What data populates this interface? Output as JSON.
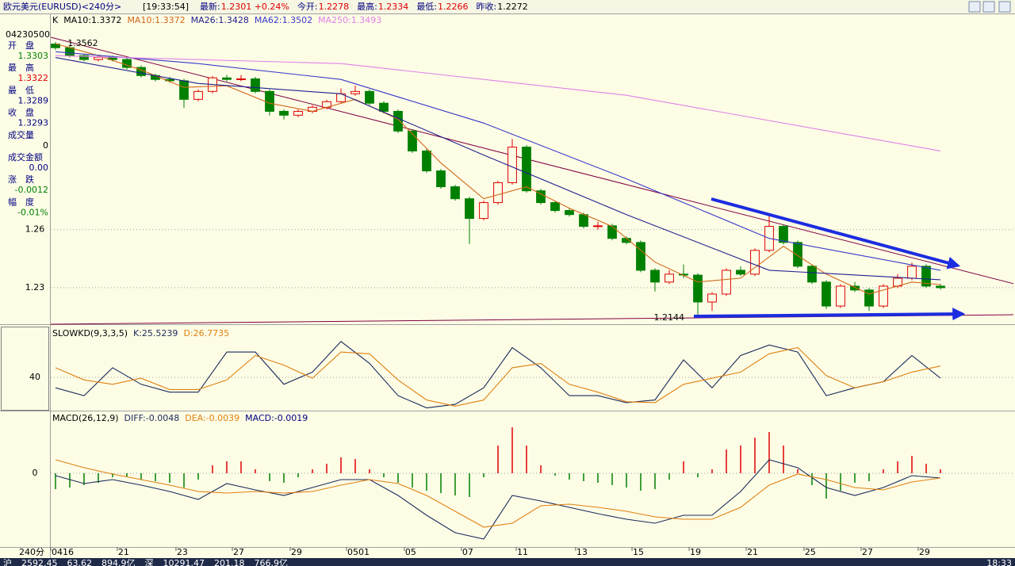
{
  "header": {
    "title": "欧元美元(EURUSD)<240分>",
    "clock": "[19:33:54]",
    "quote": [
      {
        "label": "最新:",
        "value": "1.2301 +0.24%",
        "color": "#e00000"
      },
      {
        "label": "今开:",
        "value": "1.2278",
        "color": "#e00000"
      },
      {
        "label": "最高:",
        "value": "1.2334",
        "color": "#e00000"
      },
      {
        "label": "最低:",
        "value": "1.2266",
        "color": "#e00000"
      },
      {
        "label": "昨收:",
        "value": "1.2272",
        "color": "#000000"
      }
    ]
  },
  "info": {
    "stamp": "04230500",
    "rows": [
      {
        "label": "开　盘",
        "value": "1.3303",
        "color": "#008000"
      },
      {
        "label": "最　高",
        "value": "1.3322",
        "color": "#e00000"
      },
      {
        "label": "最　低",
        "value": "1.3289",
        "color": "#000080"
      },
      {
        "label": "收　盘",
        "value": "1.3293",
        "color": "#000080"
      },
      {
        "label": "成交量",
        "value": "0",
        "color": "#000000"
      },
      {
        "label": "成交金额",
        "value": "0.00",
        "color": "#000080"
      },
      {
        "label": "涨　跌",
        "value": "-0.0012",
        "color": "#008000"
      },
      {
        "label": "幅　度",
        "value": "-0.01%",
        "color": "#008000"
      }
    ]
  },
  "period_label": "240分",
  "status": {
    "items": [
      "沪",
      "2592.45",
      "63.62",
      "894.9亿",
      "深",
      "10291.47",
      "201.18",
      "766.9亿"
    ],
    "time": "18:33"
  },
  "chart_data": [
    {
      "type": "candlestick",
      "label": "K",
      "sublabel": "MA10:1.3372",
      "up_color": "#e00000",
      "down_color": "#008000",
      "open": [
        1.356,
        1.3541,
        1.35,
        1.348,
        1.3492,
        1.348,
        1.3439,
        1.3397,
        1.3377,
        1.337,
        1.3274,
        1.3315,
        1.3385,
        1.3377,
        1.338,
        1.3315,
        1.3212,
        1.3192,
        1.3212,
        1.3233,
        1.3262,
        1.3303,
        1.3315,
        1.3254,
        1.3212,
        1.311,
        1.3007,
        1.2904,
        1.2822,
        1.276,
        1.2658,
        1.274,
        1.2843,
        1.3027,
        1.2801,
        1.274,
        1.2699,
        1.2678,
        1.2617,
        1.262,
        1.2555,
        1.2534,
        1.239,
        1.2329,
        1.237,
        1.2365,
        1.2226,
        1.2267,
        1.239,
        1.237,
        1.2493,
        1.2617,
        1.2534,
        1.2411,
        1.2329,
        1.2205,
        1.2308,
        1.2288,
        1.2205,
        1.2308,
        1.2349,
        1.2411,
        1.2308
      ],
      "high": [
        1.357,
        1.355,
        1.351,
        1.3502,
        1.35,
        1.349,
        1.3449,
        1.3407,
        1.339,
        1.338,
        1.3325,
        1.3395,
        1.34,
        1.34,
        1.339,
        1.3325,
        1.3222,
        1.3222,
        1.3243,
        1.3272,
        1.333,
        1.3345,
        1.3325,
        1.3264,
        1.3222,
        1.312,
        1.3017,
        1.2914,
        1.2832,
        1.277,
        1.275,
        1.2853,
        1.3069,
        1.3037,
        1.2811,
        1.275,
        1.2709,
        1.2688,
        1.264,
        1.263,
        1.2565,
        1.2544,
        1.24,
        1.239,
        1.242,
        1.2375,
        1.2277,
        1.24,
        1.241,
        1.2503,
        1.2678,
        1.2627,
        1.2544,
        1.2421,
        1.2339,
        1.2318,
        1.233,
        1.2298,
        1.2318,
        1.237,
        1.243,
        1.2421,
        1.232
      ],
      "low": [
        1.353,
        1.349,
        1.347,
        1.347,
        1.347,
        1.3429,
        1.3387,
        1.3367,
        1.336,
        1.323,
        1.3264,
        1.3305,
        1.3367,
        1.3367,
        1.3305,
        1.319,
        1.317,
        1.3182,
        1.3202,
        1.3223,
        1.3252,
        1.3293,
        1.3244,
        1.3202,
        1.31,
        1.2997,
        1.2894,
        1.2812,
        1.275,
        1.2526,
        1.2648,
        1.273,
        1.2833,
        1.2791,
        1.273,
        1.2689,
        1.2668,
        1.2607,
        1.26,
        1.2545,
        1.2524,
        1.238,
        1.228,
        1.2319,
        1.235,
        1.2144,
        1.218,
        1.2257,
        1.236,
        1.236,
        1.2483,
        1.2524,
        1.2401,
        1.2319,
        1.219,
        1.2195,
        1.2278,
        1.218,
        1.2195,
        1.2298,
        1.2339,
        1.2298,
        1.229
      ],
      "close": [
        1.3541,
        1.35,
        1.348,
        1.3492,
        1.348,
        1.3439,
        1.3397,
        1.3377,
        1.337,
        1.3274,
        1.3315,
        1.3385,
        1.3377,
        1.338,
        1.3315,
        1.3212,
        1.3192,
        1.3212,
        1.3233,
        1.3262,
        1.3303,
        1.3315,
        1.3254,
        1.3212,
        1.311,
        1.3007,
        1.2904,
        1.2822,
        1.276,
        1.2658,
        1.274,
        1.2843,
        1.3027,
        1.2801,
        1.274,
        1.2699,
        1.2678,
        1.2617,
        1.262,
        1.2555,
        1.2534,
        1.239,
        1.2329,
        1.237,
        1.2365,
        1.2226,
        1.2267,
        1.239,
        1.237,
        1.2493,
        1.2617,
        1.2534,
        1.2411,
        1.2329,
        1.2205,
        1.2308,
        1.2288,
        1.2205,
        1.2308,
        1.2349,
        1.2411,
        1.2308,
        1.23
      ],
      "series": [
        {
          "name": "MA10:1.3372",
          "color": "#d06818",
          "x": [
            0,
            3,
            6,
            9,
            12,
            15,
            18,
            21,
            24,
            27,
            30,
            33,
            36,
            39,
            42,
            45,
            48,
            51,
            54,
            57,
            60,
            62
          ],
          "values": [
            1.3562,
            1.35,
            1.3426,
            1.3336,
            1.3344,
            1.3254,
            1.3212,
            1.3274,
            1.3171,
            1.2945,
            1.276,
            1.2822,
            1.2711,
            1.2617,
            1.2432,
            1.2329,
            1.2349,
            1.2514,
            1.237,
            1.2267,
            1.2329,
            1.2316
          ]
        },
        {
          "name": "MA26:1.3428",
          "color": "#202090",
          "x": [
            0,
            10,
            20,
            30,
            40,
            50,
            62
          ],
          "values": [
            1.349,
            1.3356,
            1.3303,
            1.2986,
            1.2678,
            1.239,
            1.2341
          ]
        },
        {
          "name": "MA62:1.3502",
          "color": "#3838c8",
          "x": [
            0,
            10,
            20,
            30,
            40,
            50,
            62
          ],
          "values": [
            1.352,
            1.3459,
            1.3377,
            1.3151,
            1.2863,
            1.2555,
            1.239
          ]
        },
        {
          "name": "MA250:1.3493",
          "color": "#e080e8",
          "x": [
            0,
            20,
            40,
            62
          ],
          "values": [
            1.35,
            1.3459,
            1.3295,
            1.3007
          ]
        }
      ],
      "trendlines": [
        {
          "color": "#800040",
          "x": [
            -0.333,
            67.111
          ],
          "values": [
            1.3595,
            1.2321
          ]
        },
        {
          "color": "#800040",
          "x": [
            -0.333,
            67.111
          ],
          "values": [
            1.2111,
            1.216
          ]
        }
      ],
      "price_labels": [
        {
          "x": 0.4,
          "value": 1.3562
        },
        {
          "x": 44.5,
          "value": 1.2144
        }
      ],
      "xlim": [
        -0.333,
        67.111
      ],
      "ylim": [
        1.2111,
        1.3714
      ],
      "yticks": [
        1.26,
        1.23
      ],
      "grid": true,
      "xticks": [
        {
          "value": -0.333,
          "label": "0416"
        },
        {
          "value": 4.33,
          "label": "21"
        },
        {
          "value": 8.44,
          "label": "23"
        },
        {
          "value": 12.39,
          "label": "27"
        },
        {
          "value": 16.44,
          "label": "29"
        },
        {
          "value": 20.39,
          "label": "0501"
        },
        {
          "value": 24.44,
          "label": "05"
        },
        {
          "value": 28.44,
          "label": "07"
        },
        {
          "value": 32.28,
          "label": "11"
        },
        {
          "value": 36.44,
          "label": "13"
        },
        {
          "value": 40.39,
          "label": "15"
        },
        {
          "value": 44.39,
          "label": "19"
        },
        {
          "value": 48.39,
          "label": "21"
        },
        {
          "value": 52.44,
          "label": "25"
        },
        {
          "value": 56.44,
          "label": "27"
        },
        {
          "value": 60.44,
          "label": "29"
        }
      ]
    },
    {
      "type": "line",
      "label": "SLOWKD(9,3,3,5)",
      "xlim": [
        -0.333,
        67.111
      ],
      "ylim": [
        1.85,
        97.2
      ],
      "yticks": [
        40
      ],
      "grid": true,
      "series": [
        {
          "name": "K:25.5239",
          "color": "#1a2a5a",
          "x": [
            0,
            2,
            4,
            6,
            8,
            10,
            12,
            14,
            16,
            18,
            20,
            22,
            24,
            26,
            28,
            30,
            32,
            34,
            36,
            38,
            40,
            42,
            44,
            46,
            48,
            50,
            52,
            54,
            56,
            58,
            60,
            62
          ],
          "values": [
            28,
            19,
            51,
            32,
            23,
            23,
            69,
            69,
            32,
            46,
            81,
            56,
            19,
            5,
            9,
            28,
            74,
            51,
            19,
            19,
            11,
            14,
            60,
            28,
            65,
            77,
            69,
            19,
            28,
            35,
            65,
            39
          ]
        },
        {
          "name": "D:26.7735",
          "color": "#e08010",
          "x": [
            0,
            2,
            4,
            6,
            8,
            10,
            12,
            14,
            16,
            18,
            20,
            22,
            24,
            26,
            28,
            30,
            32,
            34,
            36,
            38,
            40,
            42,
            44,
            46,
            48,
            50,
            52,
            54,
            56,
            58,
            60,
            62
          ],
          "values": [
            51,
            37,
            32,
            39,
            26,
            26,
            37,
            65,
            54,
            39,
            69,
            67,
            37,
            14,
            7,
            14,
            51,
            56,
            32,
            23,
            12,
            11,
            32,
            39,
            46,
            67,
            74,
            42,
            28,
            35,
            46,
            53
          ]
        }
      ]
    },
    {
      "type": "macd",
      "label": "MACD(26,12,9)",
      "bar_name": "MACD:-0.0019",
      "up_color": "#e00000",
      "down_color": "#008000",
      "xlim": [
        -0.333,
        67.111
      ],
      "ylim": [
        -0.0093,
        0.0077
      ],
      "yticks": [
        0
      ],
      "grid": true,
      "values": [
        -0.002,
        -0.0018,
        -0.0015,
        -0.0012,
        -0.0005,
        -0.0005,
        -0.0008,
        -0.001,
        -0.0012,
        -0.0018,
        -0.0008,
        0.001,
        0.0015,
        0.0015,
        0.0005,
        -0.001,
        -0.0012,
        -0.0005,
        0.0005,
        0.0012,
        0.002,
        0.0018,
        0.0005,
        -0.0005,
        -0.0012,
        -0.0018,
        -0.0022,
        -0.0025,
        -0.0028,
        -0.003,
        -0.0005,
        0.0035,
        0.0058,
        0.0035,
        0.001,
        -0.0003,
        -0.0008,
        -0.001,
        -0.0012,
        -0.0015,
        -0.0018,
        -0.0022,
        -0.002,
        -0.0008,
        0.0015,
        -0.0005,
        0.0005,
        0.003,
        0.0035,
        0.0045,
        0.0052,
        0.0035,
        0.0005,
        -0.0015,
        -0.0032,
        -0.0022,
        -0.0012,
        -0.001,
        0.0005,
        0.0015,
        0.0022,
        0.0012,
        0.0005
      ],
      "series": [
        {
          "name": "DIFF:-0.0048",
          "color": "#1a2a5a",
          "x": [
            0,
            2,
            4,
            6,
            8,
            10,
            12,
            14,
            16,
            18,
            20,
            22,
            24,
            26,
            28,
            30,
            32,
            34,
            36,
            38,
            40,
            42,
            44,
            46,
            48,
            50,
            52,
            54,
            56,
            58,
            60,
            62
          ],
          "values": [
            -0.0003,
            -0.0013,
            -0.0008,
            -0.0015,
            -0.0023,
            -0.0033,
            -0.0013,
            -0.0021,
            -0.0028,
            -0.0018,
            -0.0008,
            -0.0008,
            -0.0028,
            -0.0053,
            -0.0075,
            -0.0083,
            -0.0028,
            -0.0035,
            -0.0043,
            -0.0051,
            -0.0058,
            -0.0063,
            -0.0053,
            -0.0053,
            -0.0023,
            0.0017,
            0.0007,
            -0.0018,
            -0.0028,
            -0.0018,
            -0.0003,
            -0.0006
          ]
        },
        {
          "name": "DEA:-0.0039",
          "color": "#e08010",
          "x": [
            0,
            2,
            4,
            6,
            8,
            10,
            12,
            14,
            16,
            18,
            20,
            22,
            24,
            26,
            28,
            30,
            32,
            34,
            36,
            38,
            40,
            42,
            44,
            46,
            48,
            50,
            52,
            54,
            56,
            58,
            60,
            62
          ],
          "values": [
            0.0017,
            0.0007,
            -0.0001,
            -0.0008,
            -0.0015,
            -0.0023,
            -0.0025,
            -0.0023,
            -0.0025,
            -0.0023,
            -0.0015,
            -0.0008,
            -0.0013,
            -0.0028,
            -0.0048,
            -0.0068,
            -0.0063,
            -0.0041,
            -0.0039,
            -0.0043,
            -0.0048,
            -0.0055,
            -0.0058,
            -0.0058,
            -0.0043,
            -0.0015,
            -0.0001,
            -0.0008,
            -0.0018,
            -0.0021,
            -0.0011,
            -0.0006
          ]
        }
      ]
    }
  ]
}
